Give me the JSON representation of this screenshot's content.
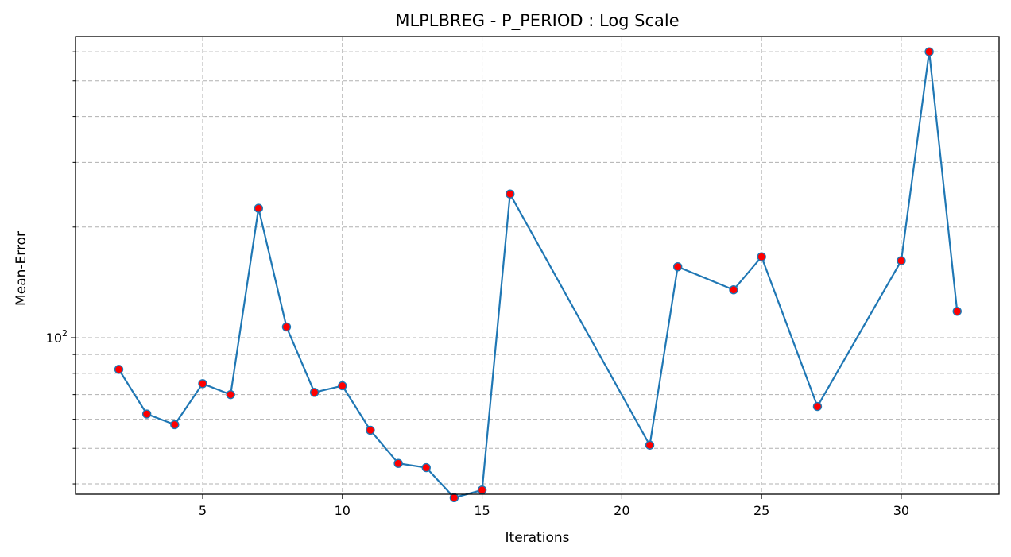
{
  "chart_data": {
    "type": "line",
    "title": "MLPLBREG - P_PERIOD : Log Scale",
    "xlabel": "Iterations",
    "ylabel": "Mean-Error",
    "y_scale": "log",
    "xlim": [
      0.45,
      33.5
    ],
    "ylim": [
      37.5,
      660
    ],
    "x_ticks": [
      5,
      10,
      15,
      20,
      25,
      30
    ],
    "y_major_tick": {
      "value": 100,
      "label": "10",
      "exponent": "2"
    },
    "y_minor_ticks": [
      40,
      50,
      60,
      70,
      80,
      90,
      200,
      300,
      400,
      500,
      600
    ],
    "grid": true,
    "legend": "none",
    "series": [
      {
        "color": "#1f77b4",
        "marker_face_color": "#ff0000",
        "marker_edge_color": "#1f77b4",
        "x": [
          2,
          3,
          4,
          5,
          6,
          7,
          8,
          9,
          10,
          11,
          12,
          13,
          14,
          15,
          16,
          21,
          22,
          24,
          25,
          27,
          30,
          31,
          32
        ],
        "y": [
          82,
          62,
          58,
          75,
          70,
          225,
          107,
          71,
          74,
          56,
          45.5,
          44.3,
          36.7,
          38.5,
          246,
          51,
          156,
          135,
          166,
          65,
          162,
          600,
          118
        ]
      }
    ]
  }
}
